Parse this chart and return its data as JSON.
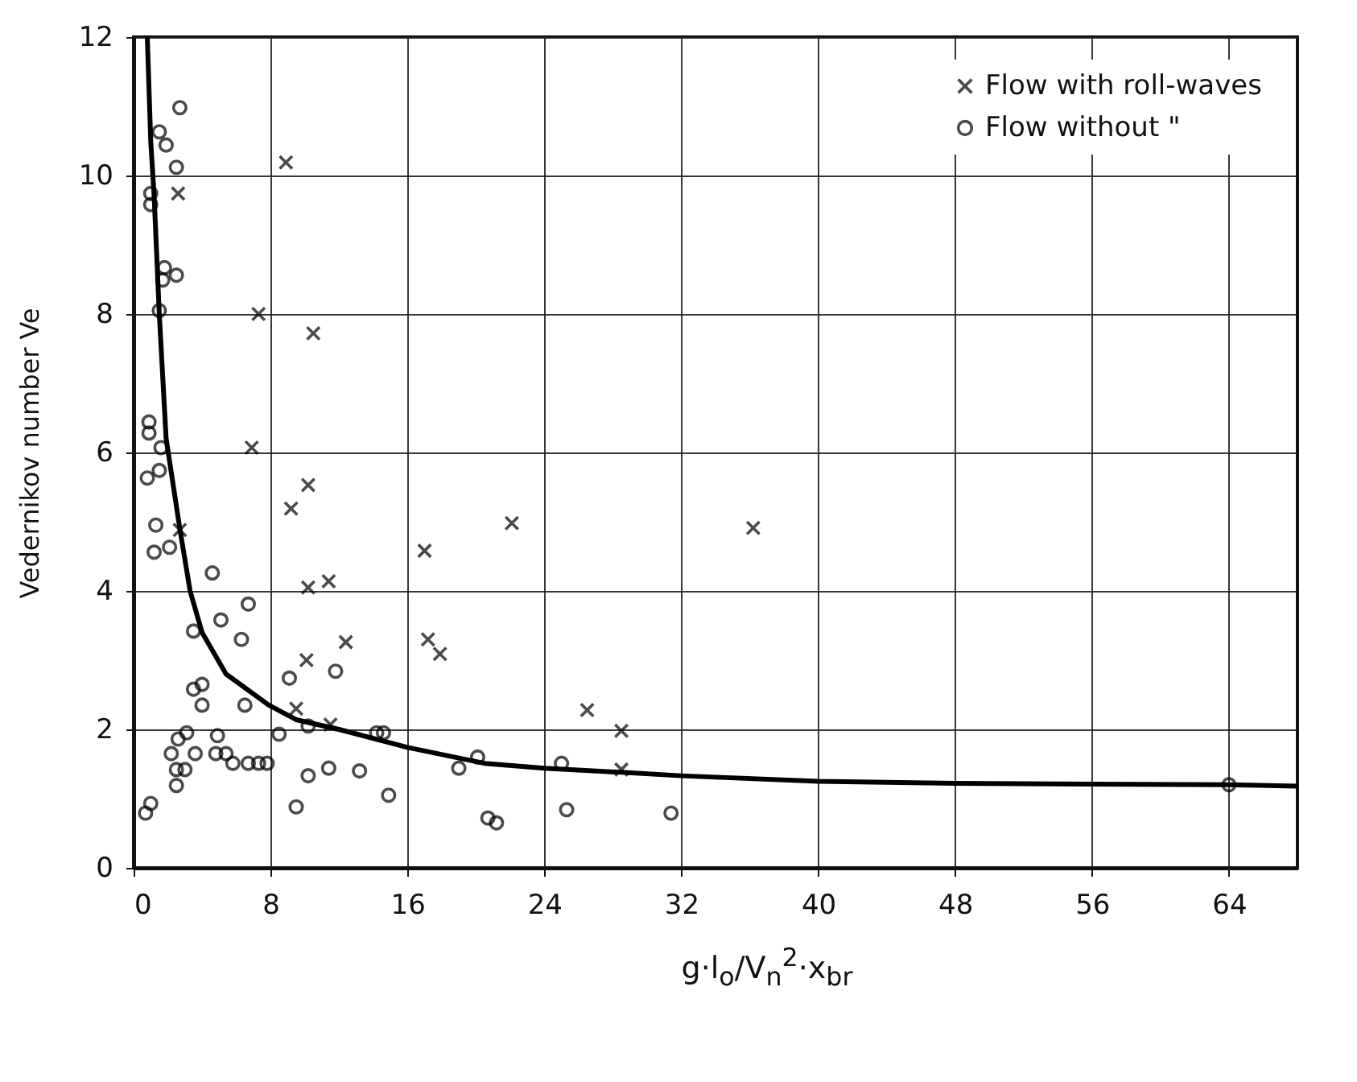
{
  "chart_data": {
    "type": "scatter",
    "xlabel": "g·l$_{o}$/V$_{n}$$^{2}$·x$_{br}$",
    "ylabel": "Vedernikov number  Ve",
    "xlim": [
      0,
      68
    ],
    "ylim": [
      0,
      12
    ],
    "xticks": [
      0,
      8,
      16,
      24,
      32,
      40,
      48,
      56,
      64
    ],
    "yticks": [
      0,
      2,
      4,
      6,
      8,
      10,
      12
    ],
    "grid": true,
    "legend": "top right",
    "series": [
      {
        "name": "Flow with roll-waves",
        "color": "#000000",
        "marker": "cross",
        "x": [
          8.9,
          2.6,
          7.3,
          10.5,
          6.9,
          10.2,
          9.2,
          2.7,
          10.2,
          11.4,
          12.4,
          10.1,
          9.5,
          11.5,
          17.0,
          22.1,
          17.2,
          17.9,
          26.5,
          28.5,
          28.5,
          36.2
        ],
        "values": [
          10.19,
          9.74,
          8.0,
          7.72,
          6.07,
          5.53,
          5.19,
          4.88,
          4.05,
          4.14,
          3.26,
          3.0,
          2.3,
          2.07,
          4.58,
          4.98,
          3.3,
          3.09,
          2.28,
          1.98,
          1.42,
          4.91
        ]
      },
      {
        "name": "Flow without \"",
        "color": "#000000",
        "marker": "circle",
        "x": [
          2.7,
          1.5,
          1.9,
          2.5,
          1.0,
          1.0,
          1.8,
          2.5,
          1.7,
          1.5,
          0.9,
          0.9,
          1.6,
          1.5,
          0.8,
          1.3,
          1.2,
          2.1,
          4.6,
          6.7,
          5.1,
          3.5,
          6.3,
          4.0,
          3.5,
          4.0,
          6.5,
          9.1,
          11.8,
          3.1,
          2.6,
          4.9,
          8.5,
          10.2,
          2.2,
          3.6,
          4.8,
          5.4,
          5.8,
          6.7,
          7.3,
          7.8,
          2.5,
          3.0,
          2.5,
          10.2,
          11.4,
          13.2,
          14.9,
          9.5,
          1.0,
          0.7,
          14.2,
          14.6,
          20.1,
          19.0,
          20.7,
          21.2,
          25.0,
          25.3,
          31.4,
          64.0
        ],
        "values": [
          10.98,
          10.63,
          10.44,
          10.12,
          9.74,
          9.58,
          8.67,
          8.56,
          8.49,
          8.05,
          6.44,
          6.28,
          6.07,
          5.74,
          5.63,
          4.95,
          4.56,
          4.63,
          4.26,
          3.81,
          3.58,
          3.42,
          3.3,
          2.65,
          2.58,
          2.35,
          2.35,
          2.74,
          2.84,
          1.95,
          1.86,
          1.91,
          1.93,
          2.05,
          1.65,
          1.65,
          1.65,
          1.65,
          1.51,
          1.51,
          1.51,
          1.51,
          1.42,
          1.42,
          1.19,
          1.33,
          1.44,
          1.4,
          1.05,
          0.88,
          0.93,
          0.79,
          1.95,
          1.95,
          1.6,
          1.44,
          0.72,
          0.65,
          1.51,
          0.84,
          0.79,
          1.2
        ]
      },
      {
        "type": "line",
        "color": "#000000",
        "marker": "none",
        "line_style": "solid",
        "x": [
          0.8,
          1.0,
          1.2,
          1.5,
          1.9,
          2.7,
          3.3,
          4.0,
          5.4,
          7.9,
          9.5,
          12,
          16,
          20.5,
          24,
          28.5,
          32,
          40,
          48,
          56,
          64,
          68
        ],
        "values": [
          12,
          10.5,
          9.7,
          8.0,
          6.2,
          4.9,
          4.0,
          3.4,
          2.8,
          2.35,
          2.14,
          2.0,
          1.74,
          1.51,
          1.44,
          1.38,
          1.33,
          1.25,
          1.22,
          1.21,
          1.2,
          1.18
        ]
      }
    ]
  }
}
